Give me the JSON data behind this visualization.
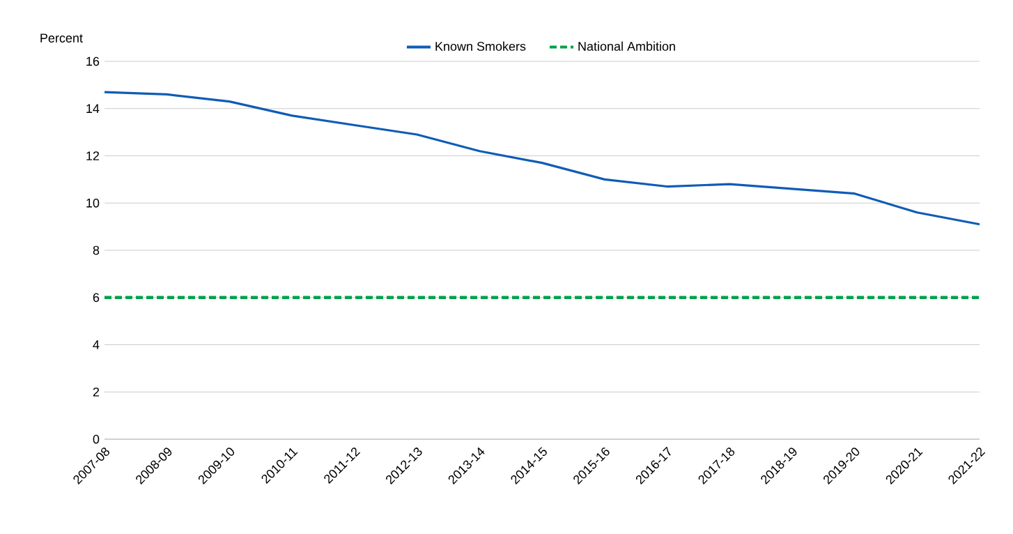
{
  "chart_data": {
    "type": "line",
    "ylabel": "Percent",
    "categories": [
      "2007-08",
      "2008-09",
      "2009-10",
      "2010-11",
      "2011-12",
      "2012-13",
      "2013-14",
      "2014-15",
      "2015-16",
      "2016-17",
      "2017-18",
      "2018-19",
      "2019-20",
      "2020-21",
      "2021-22"
    ],
    "series": [
      {
        "name": "Known Smokers",
        "color": "#0f5cb5",
        "values": [
          14.7,
          14.6,
          14.3,
          13.7,
          13.3,
          12.9,
          12.2,
          11.7,
          11.0,
          10.7,
          10.8,
          10.6,
          10.4,
          9.6,
          9.1
        ]
      }
    ],
    "ref_lines": [
      {
        "axis": "y",
        "value": 6,
        "label": "National Ambition",
        "color": "#00a04a",
        "line_style": "dashed"
      }
    ],
    "ylim": [
      0,
      16
    ],
    "yticks": [
      0,
      2,
      4,
      6,
      8,
      10,
      12,
      14,
      16
    ],
    "grid": "y",
    "legend": "top",
    "marker": "none",
    "line_style": "solid"
  }
}
